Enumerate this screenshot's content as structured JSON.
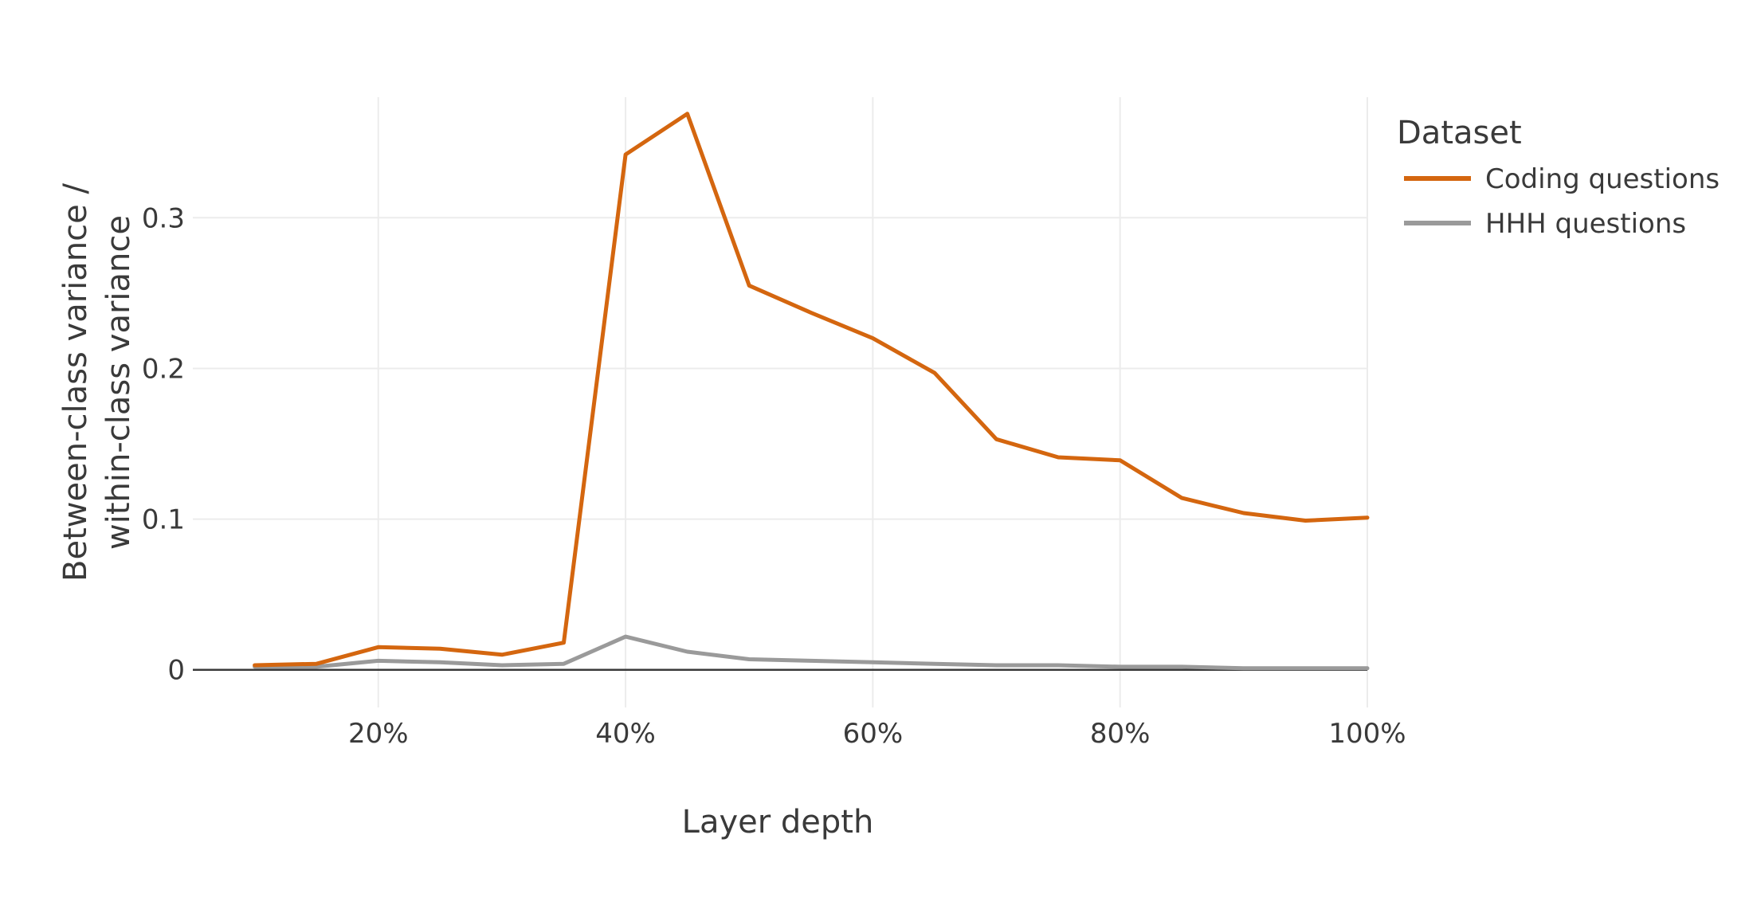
{
  "chart_data": {
    "type": "line",
    "xlabel": "Layer depth",
    "ylabel_lines": [
      "Between-class variance /",
      "within-class variance"
    ],
    "x": [
      10,
      15,
      20,
      25,
      30,
      35,
      40,
      45,
      50,
      55,
      60,
      65,
      70,
      75,
      80,
      85,
      90,
      95,
      100
    ],
    "xlim": [
      5,
      100
    ],
    "ylim": [
      -0.025,
      0.38
    ],
    "xticks": [
      20,
      40,
      60,
      80,
      100
    ],
    "xtick_labels": [
      "20%",
      "40%",
      "60%",
      "80%",
      "100%"
    ],
    "yticks": [
      0,
      0.1,
      0.2,
      0.3
    ],
    "ytick_labels": [
      "0",
      "0.1",
      "0.2",
      "0.3"
    ],
    "grid": true,
    "legend": {
      "title": "Dataset",
      "position": "top-right outside"
    },
    "series": [
      {
        "name": "Coding questions",
        "color": "#d4660f",
        "values": [
          0.003,
          0.004,
          0.015,
          0.014,
          0.01,
          0.018,
          0.342,
          0.369,
          0.255,
          0.237,
          0.22,
          0.197,
          0.153,
          0.141,
          0.139,
          0.114,
          0.104,
          0.099,
          0.101
        ]
      },
      {
        "name": "HHH questions",
        "color": "#9a9a9a",
        "values": [
          0.002,
          0.002,
          0.006,
          0.005,
          0.003,
          0.004,
          0.022,
          0.012,
          0.007,
          0.006,
          0.005,
          0.004,
          0.003,
          0.003,
          0.002,
          0.002,
          0.001,
          0.001,
          0.001
        ]
      }
    ]
  }
}
